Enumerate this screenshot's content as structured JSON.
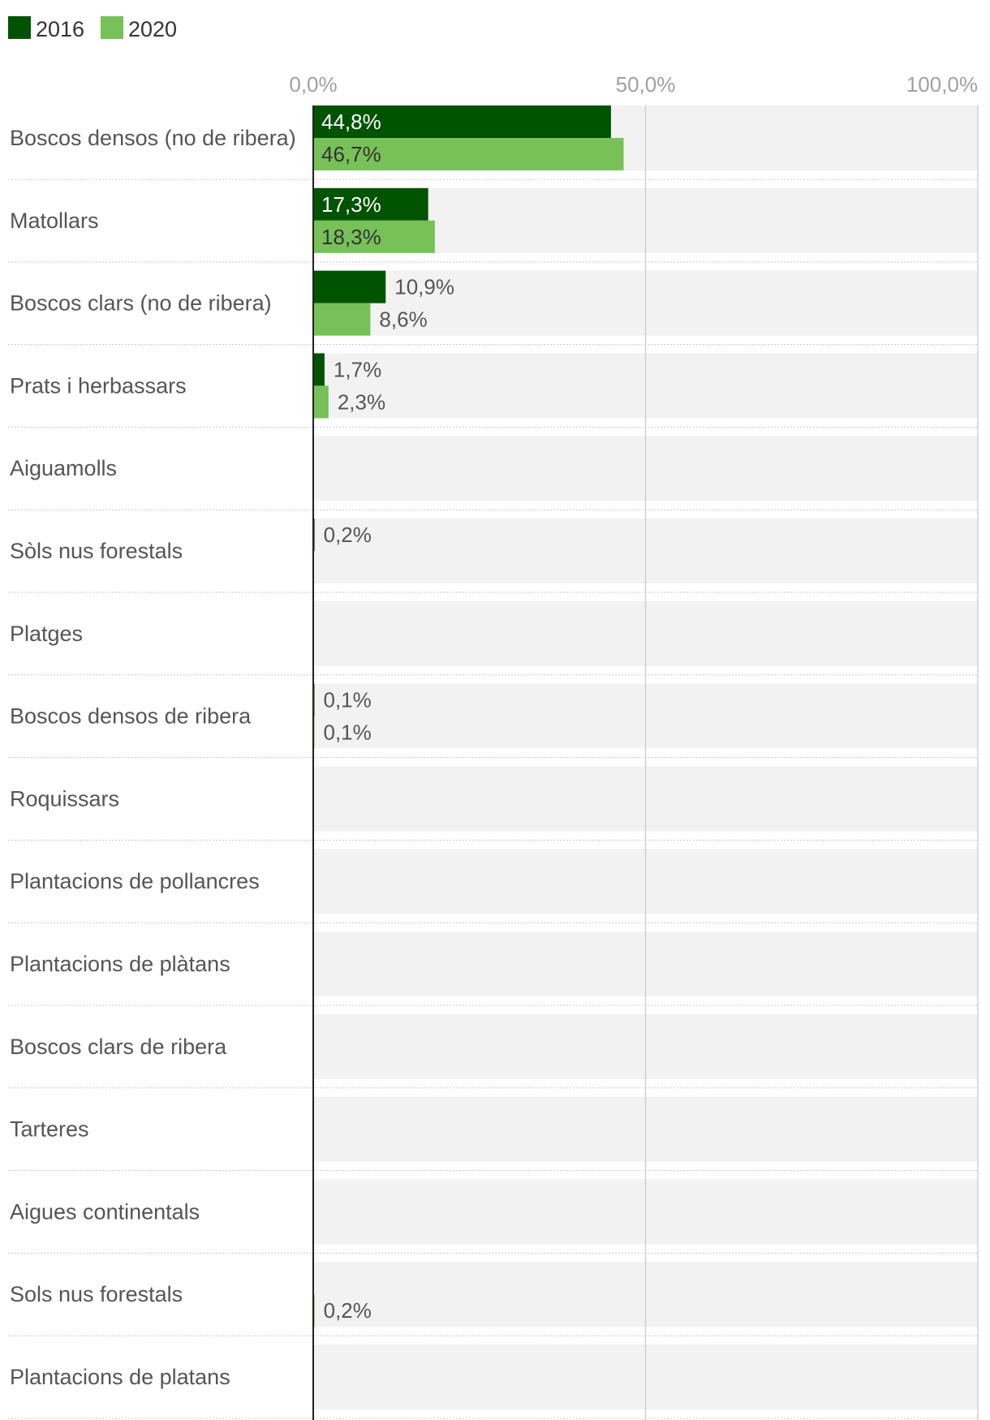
{
  "chart_data": {
    "type": "bar",
    "orientation": "horizontal",
    "title": "",
    "xlabel": "",
    "ylabel": "",
    "xlim": [
      0,
      100
    ],
    "ticks": [
      {
        "value": 0,
        "label": "0,0%"
      },
      {
        "value": 50,
        "label": "50,0%"
      },
      {
        "value": 100,
        "label": "100,0%"
      }
    ],
    "legend_position": "top-left",
    "grid": true,
    "categories": [
      "Boscos densos (no de ribera)",
      "Matollars",
      "Boscos clars (no de ribera)",
      "Prats i herbassars",
      "Aiguamolls",
      "Sòls nus forestals",
      "Platges",
      "Boscos densos de ribera",
      "Roquissars",
      "Plantacions de pollancres",
      "Plantacions de plàtans",
      "Boscos clars de ribera",
      "Tarteres",
      "Aigues continentals",
      "Sols nus forestals",
      "Plantacions de platans"
    ],
    "series": [
      {
        "name": "2016",
        "color": "#005300",
        "values": [
          44.8,
          17.3,
          10.9,
          1.7,
          null,
          0.2,
          null,
          0.1,
          null,
          null,
          null,
          null,
          null,
          null,
          null,
          null
        ],
        "labels": [
          "44,8%",
          "17,3%",
          "10,9%",
          "1,7%",
          "",
          "0,2%",
          "",
          "0,1%",
          "",
          "",
          "",
          "",
          "",
          "",
          "",
          ""
        ]
      },
      {
        "name": "2020",
        "color": "#77c158",
        "values": [
          46.7,
          18.3,
          8.6,
          2.3,
          null,
          null,
          null,
          0.1,
          null,
          null,
          null,
          null,
          null,
          null,
          0.2,
          null
        ],
        "labels": [
          "46,7%",
          "18,3%",
          "8,6%",
          "2,3%",
          "",
          "",
          "",
          "0,1%",
          "",
          "",
          "",
          "",
          "",
          "",
          "0,2%",
          ""
        ]
      }
    ]
  }
}
